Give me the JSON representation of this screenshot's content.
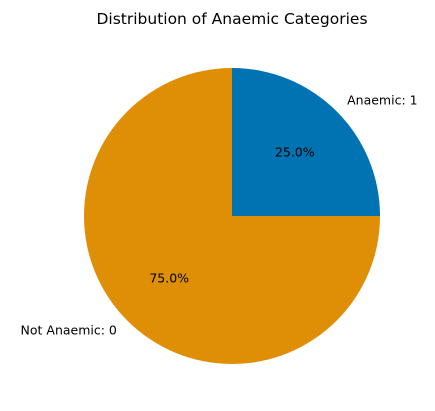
{
  "chart_data": {
    "type": "pie",
    "title": "Distribution of Anaemic Categories",
    "start_angle_deg": 90,
    "direction": "clockwise",
    "slices": [
      {
        "label": "Anaemic: 1",
        "value": 25.0,
        "pct_label": "25.0%",
        "color": "#0173b2"
      },
      {
        "label": "Not Anaemic: 0",
        "value": 75.0,
        "pct_label": "75.0%",
        "color": "#de8f05"
      }
    ]
  }
}
